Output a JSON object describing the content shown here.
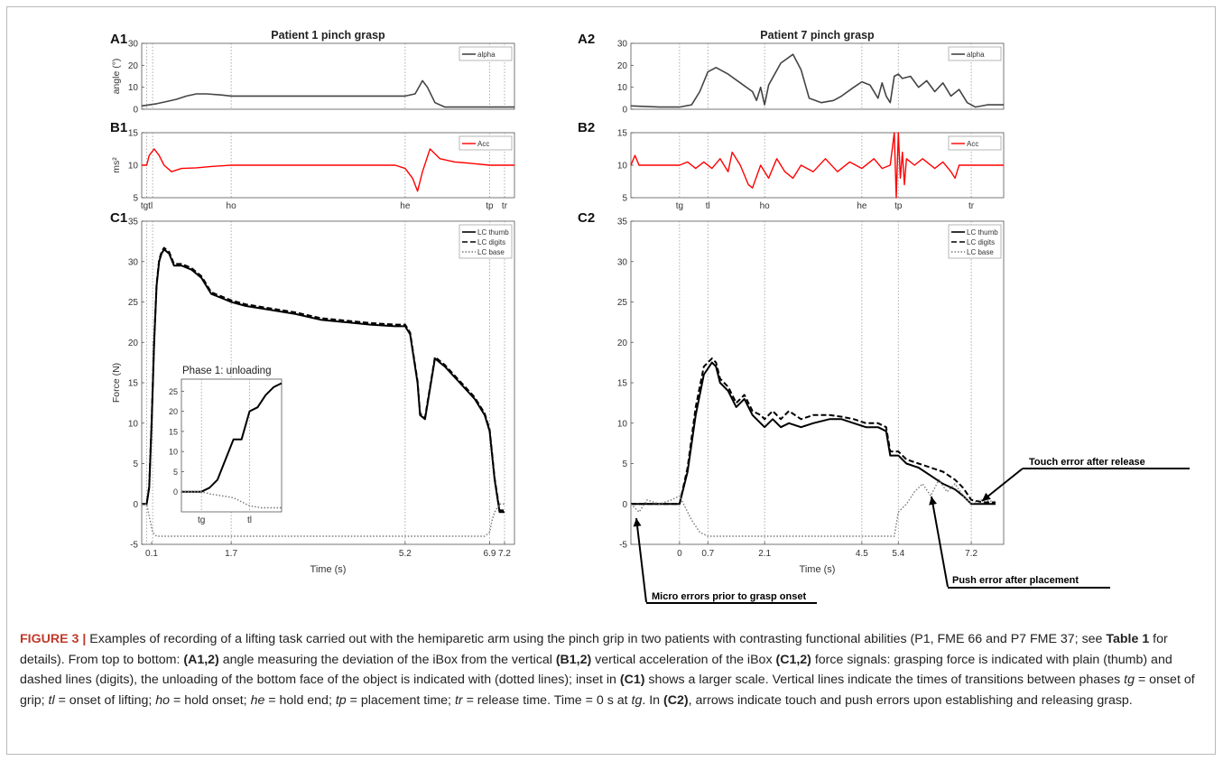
{
  "colors": {
    "angle": "#444444",
    "acc": "#ff0000",
    "thumb": "#000000",
    "base": "#777777",
    "grid": "#999999",
    "caption_label": "#c0392b"
  },
  "chart_data": [
    {
      "panel": "A1",
      "type": "line",
      "title": "Patient 1 pinch grasp",
      "ylabel": "angle (°)",
      "ylim": [
        0,
        30
      ],
      "yticks": [
        0,
        10,
        20,
        30
      ],
      "xlim": [
        -0.1,
        7.4
      ],
      "events": [
        0,
        0.12,
        1.7,
        5.2,
        6.9,
        7.2
      ],
      "legend": [
        "alpha"
      ],
      "legend_pos": "top-right",
      "series": [
        {
          "name": "alpha",
          "x": [
            -0.1,
            0.0,
            0.2,
            0.4,
            0.6,
            0.8,
            1.0,
            1.2,
            1.5,
            1.7,
            2.0,
            3.0,
            4.0,
            5.0,
            5.2,
            5.4,
            5.55,
            5.65,
            5.8,
            6.0,
            6.5,
            7.0,
            7.4
          ],
          "y": [
            1.5,
            1.8,
            2.5,
            3.5,
            4.5,
            6,
            7,
            7,
            6.5,
            6,
            6,
            6,
            6,
            6,
            6,
            7,
            13,
            10,
            3,
            1,
            1,
            1,
            1
          ]
        }
      ]
    },
    {
      "panel": "B1",
      "type": "line",
      "ylabel": "ms²",
      "ylim": [
        5,
        15
      ],
      "yticks": [
        5,
        10,
        15
      ],
      "xlim": [
        -0.1,
        7.4
      ],
      "events": [
        0,
        0.12,
        1.7,
        5.2,
        6.9,
        7.2
      ],
      "event_labels": [
        "tgtl",
        "ho",
        "he",
        "tp",
        "tr"
      ],
      "legend": [
        "Acc"
      ],
      "legend_pos": "top-right",
      "series": [
        {
          "name": "Acc",
          "x": [
            -0.1,
            0.0,
            0.05,
            0.15,
            0.25,
            0.35,
            0.5,
            0.7,
            1.0,
            1.3,
            1.7,
            2.5,
            3.5,
            4.5,
            5.0,
            5.2,
            5.35,
            5.45,
            5.55,
            5.7,
            5.9,
            6.2,
            6.5,
            6.9,
            7.2,
            7.4
          ],
          "y": [
            10,
            10,
            11.5,
            12.5,
            11.5,
            10,
            9,
            9.5,
            9.6,
            9.8,
            10,
            10,
            10,
            10,
            10,
            9.5,
            8,
            6,
            9,
            12.5,
            11,
            10.5,
            10.3,
            10,
            10,
            10
          ]
        }
      ]
    },
    {
      "panel": "C1",
      "type": "line",
      "xlabel": "Time (s)",
      "ylabel": "Force (N)",
      "ylim": [
        -5,
        35
      ],
      "yticks": [
        -5,
        0,
        5,
        10,
        15,
        20,
        25,
        30,
        35
      ],
      "xlim": [
        -0.1,
        7.4
      ],
      "xticks": [
        0.1,
        1.7,
        5.2,
        6.9,
        7.2
      ],
      "xtick_labels": [
        "0.1",
        "1.7",
        "5.2",
        "6.9",
        "7.2"
      ],
      "events": [
        0,
        0.12,
        1.7,
        5.2,
        6.9,
        7.2
      ],
      "legend": [
        "LC thumb",
        "LC digits",
        "LC base"
      ],
      "legend_pos": "top-right",
      "series": [
        {
          "name": "LC thumb",
          "x": [
            -0.1,
            0.0,
            0.05,
            0.1,
            0.15,
            0.2,
            0.25,
            0.3,
            0.35,
            0.45,
            0.55,
            0.7,
            0.9,
            1.1,
            1.3,
            1.5,
            1.7,
            2.0,
            2.5,
            3.0,
            3.5,
            4.0,
            4.5,
            5.0,
            5.2,
            5.3,
            5.45,
            5.5,
            5.6,
            5.8,
            6.0,
            6.3,
            6.6,
            6.8,
            6.9,
            7.0,
            7.1,
            7.2
          ],
          "y": [
            0,
            0,
            2,
            10,
            20,
            27,
            30,
            31,
            31.5,
            31,
            29.5,
            29.5,
            29,
            28,
            26,
            25.5,
            25,
            24.5,
            24,
            23.5,
            22.8,
            22.5,
            22.2,
            22,
            22,
            21,
            15,
            11,
            10.5,
            18,
            17,
            15,
            13,
            11,
            9,
            3,
            -1,
            -1
          ]
        },
        {
          "name": "LC digits",
          "x": [
            -0.1,
            0.0,
            0.05,
            0.1,
            0.15,
            0.2,
            0.25,
            0.3,
            0.35,
            0.45,
            0.55,
            0.7,
            0.9,
            1.1,
            1.3,
            1.5,
            1.7,
            2.0,
            2.5,
            3.0,
            3.5,
            4.0,
            4.5,
            5.0,
            5.2,
            5.3,
            5.45,
            5.5,
            5.6,
            5.8,
            6.0,
            6.3,
            6.6,
            6.8,
            6.9,
            7.0,
            7.1,
            7.2
          ],
          "y": [
            0,
            0,
            2.2,
            10.3,
            20.3,
            27.2,
            30.2,
            31.2,
            31.7,
            31.2,
            29.7,
            29.7,
            29.2,
            28.2,
            26.2,
            25.7,
            25.2,
            24.7,
            24.2,
            23.7,
            23,
            22.7,
            22.4,
            22.2,
            22.2,
            21.2,
            15.2,
            11.2,
            10.7,
            18.2,
            17.2,
            15.2,
            13.2,
            11.2,
            9.2,
            3.2,
            -0.8,
            -0.8
          ]
        },
        {
          "name": "LC base",
          "x": [
            -0.1,
            0.0,
            0.05,
            0.12,
            0.2,
            0.5,
            1.0,
            2.0,
            3.0,
            4.0,
            5.0,
            5.2,
            6.0,
            6.8,
            6.9,
            6.95,
            7.0,
            7.1,
            7.2
          ],
          "y": [
            0,
            0,
            -1.5,
            -3.5,
            -4,
            -4,
            -4,
            -4,
            -4,
            -4,
            -4,
            -4,
            -4,
            -4,
            -3.5,
            -2,
            -1,
            0,
            0
          ]
        }
      ]
    },
    {
      "panel": "C1-inset",
      "type": "line",
      "title": "Phase 1: unloading",
      "xlim": [
        -0.05,
        0.2
      ],
      "ylim": [
        -5,
        28
      ],
      "yticks": [
        0,
        5,
        10,
        15,
        20,
        25
      ],
      "events": [
        0,
        0.12
      ],
      "event_labels": [
        "tg",
        "tl"
      ],
      "series": [
        {
          "name": "LC thumb",
          "x": [
            -0.05,
            -0.02,
            0.0,
            0.02,
            0.04,
            0.06,
            0.08,
            0.1,
            0.12,
            0.14,
            0.16,
            0.18,
            0.2
          ],
          "y": [
            0,
            0,
            0,
            1,
            3,
            8,
            13,
            13,
            20,
            21,
            24,
            26,
            27
          ]
        },
        {
          "name": "LC base",
          "x": [
            -0.05,
            -0.02,
            0.0,
            0.02,
            0.05,
            0.08,
            0.1,
            0.12,
            0.15,
            0.2
          ],
          "y": [
            0,
            0,
            0,
            -0.5,
            -1,
            -1.5,
            -2.5,
            -3.5,
            -4,
            -4
          ]
        }
      ]
    },
    {
      "panel": "A2",
      "type": "line",
      "title": "Patient 7 pinch grasp",
      "ylim": [
        0,
        30
      ],
      "yticks": [
        0,
        10,
        20,
        30
      ],
      "xlim": [
        -1.2,
        8.0
      ],
      "events": [
        0,
        0.7,
        2.1,
        4.5,
        5.4,
        7.2
      ],
      "legend": [
        "alpha"
      ],
      "legend_pos": "top-right",
      "series": [
        {
          "name": "alpha",
          "x": [
            -1.2,
            -0.5,
            0.0,
            0.3,
            0.5,
            0.7,
            0.9,
            1.2,
            1.5,
            1.8,
            1.9,
            2.0,
            2.1,
            2.2,
            2.5,
            2.8,
            3.0,
            3.2,
            3.5,
            3.8,
            4.0,
            4.3,
            4.5,
            4.7,
            4.9,
            5.0,
            5.1,
            5.2,
            5.3,
            5.4,
            5.5,
            5.7,
            5.9,
            6.1,
            6.3,
            6.5,
            6.7,
            6.9,
            7.1,
            7.3,
            7.6,
            8.0
          ],
          "y": [
            1.5,
            1,
            1,
            2,
            8,
            17,
            19,
            16,
            12,
            8,
            4,
            10,
            2,
            11,
            21,
            25,
            18,
            5,
            3,
            4,
            6,
            10,
            12.5,
            11,
            5,
            12,
            6,
            3,
            15,
            16,
            14,
            15,
            10,
            13,
            8,
            12,
            6,
            9,
            3,
            1,
            2,
            2
          ]
        }
      ]
    },
    {
      "panel": "B2",
      "type": "line",
      "ylim": [
        5,
        15
      ],
      "yticks": [
        5,
        10,
        15
      ],
      "xlim": [
        -1.2,
        8.0
      ],
      "events": [
        0,
        0.7,
        2.1,
        4.5,
        5.4,
        7.2
      ],
      "event_labels": [
        "tg",
        "tl",
        "ho",
        "he",
        "tp",
        "tr"
      ],
      "legend": [
        "Acc"
      ],
      "legend_pos": "top-right",
      "series": [
        {
          "name": "Acc",
          "x": [
            -1.2,
            -1.1,
            -1.0,
            0.0,
            0.2,
            0.4,
            0.6,
            0.8,
            1.0,
            1.2,
            1.3,
            1.5,
            1.7,
            1.8,
            2.0,
            2.2,
            2.4,
            2.6,
            2.8,
            3.0,
            3.3,
            3.6,
            3.9,
            4.2,
            4.5,
            4.8,
            5.0,
            5.2,
            5.3,
            5.35,
            5.4,
            5.45,
            5.5,
            5.55,
            5.6,
            5.8,
            6.0,
            6.3,
            6.5,
            6.7,
            6.8,
            6.9,
            7.2,
            7.5,
            8.0
          ],
          "y": [
            10,
            11.5,
            10,
            10,
            10.5,
            9.5,
            10.5,
            9.5,
            11,
            9,
            12,
            10,
            7,
            6.5,
            10,
            8,
            11,
            9,
            8,
            10,
            9,
            11,
            9,
            10.5,
            9.5,
            11,
            9.5,
            10,
            15,
            5,
            15,
            8,
            12,
            7,
            11,
            10,
            11,
            9.5,
            10.5,
            9,
            8,
            10,
            10,
            10,
            10
          ]
        }
      ]
    },
    {
      "panel": "C2",
      "type": "line",
      "xlabel": "Time (s)",
      "ylim": [
        -5,
        35
      ],
      "yticks": [
        -5,
        0,
        5,
        10,
        15,
        20,
        25,
        30,
        35
      ],
      "xlim": [
        -1.2,
        8.0
      ],
      "xticks": [
        0,
        0.7,
        2.1,
        4.5,
        5.4,
        7.2
      ],
      "xtick_labels": [
        "0",
        "0.7",
        "2.1",
        "4.5",
        "5.4",
        "7.2"
      ],
      "events": [
        0,
        0.7,
        2.1,
        4.5,
        5.4,
        7.2
      ],
      "legend": [
        "LC thumb",
        "LC digits",
        "LC base"
      ],
      "legend_pos": "top-right",
      "series": [
        {
          "name": "LC thumb",
          "x": [
            -1.2,
            -0.5,
            0.0,
            0.2,
            0.4,
            0.6,
            0.8,
            0.9,
            1.0,
            1.2,
            1.4,
            1.6,
            1.8,
            2.0,
            2.1,
            2.3,
            2.5,
            2.7,
            3.0,
            3.3,
            3.7,
            4.0,
            4.3,
            4.6,
            4.9,
            5.1,
            5.2,
            5.4,
            5.6,
            5.9,
            6.2,
            6.5,
            6.8,
            7.0,
            7.2,
            7.5,
            7.8
          ],
          "y": [
            0,
            0,
            0,
            4,
            11,
            16,
            17.5,
            17,
            15,
            14,
            12,
            13,
            11,
            10,
            9.5,
            10.5,
            9.5,
            10,
            9.5,
            10,
            10.5,
            10.5,
            10,
            9.5,
            9.5,
            9,
            6,
            6,
            5,
            4.5,
            3.5,
            2.5,
            1.8,
            1,
            0,
            0,
            0
          ]
        },
        {
          "name": "LC digits",
          "x": [
            -1.2,
            -0.5,
            0.0,
            0.2,
            0.4,
            0.6,
            0.8,
            0.9,
            1.0,
            1.2,
            1.4,
            1.6,
            1.8,
            2.0,
            2.1,
            2.3,
            2.5,
            2.7,
            3.0,
            3.3,
            3.7,
            4.0,
            4.3,
            4.6,
            4.9,
            5.1,
            5.2,
            5.4,
            5.6,
            5.9,
            6.2,
            6.5,
            6.8,
            7.0,
            7.2,
            7.5,
            7.8
          ],
          "y": [
            0,
            0,
            0,
            4.5,
            12,
            17,
            18,
            17.5,
            15.5,
            14.5,
            12.5,
            13.5,
            11.5,
            11,
            10.5,
            11.5,
            10.5,
            11.5,
            10.5,
            11,
            11,
            10.8,
            10.5,
            10,
            10,
            9.5,
            6.5,
            6.5,
            5.5,
            5,
            4.5,
            4,
            3,
            2,
            0.5,
            0.2,
            0.2
          ]
        },
        {
          "name": "LC base",
          "x": [
            -1.2,
            -1.0,
            -0.8,
            -0.5,
            -0.2,
            0.0,
            0.1,
            0.3,
            0.5,
            0.7,
            1.0,
            2.0,
            3.0,
            4.0,
            5.0,
            5.3,
            5.4,
            5.6,
            5.8,
            6.0,
            6.2,
            6.4,
            6.6,
            6.8,
            7.0,
            7.2,
            7.4,
            7.8
          ],
          "y": [
            0,
            -1,
            0.5,
            0,
            0.5,
            1,
            0,
            -2,
            -3.5,
            -4,
            -4,
            -4,
            -4,
            -4,
            -4,
            -4,
            -1,
            0,
            1.5,
            2.5,
            1,
            3,
            1.5,
            2.5,
            1,
            0,
            0.5,
            0.3
          ]
        }
      ]
    }
  ],
  "panel_labels": {
    "a1": "A1",
    "b1": "B1",
    "c1": "C1",
    "a2": "A2",
    "b2": "B2",
    "c2": "C2"
  },
  "annotations": {
    "micro": "Micro errors prior to grasp onset",
    "push": "Push error after placement",
    "touch": "Touch error after release"
  },
  "caption": {
    "label": "FIGURE 3 |",
    "s1": " Examples of recording of a lifting task carried out with the hemiparetic arm using the pinch grip in two patients with contrasting functional abilities (P1, FME 66 and P7 FME 37; see ",
    "table_ref": "Table 1",
    "s2": " for details). From top to bottom: ",
    "r1": "(A1,2)",
    "s3": " angle measuring the deviation of the iBox from the vertical ",
    "r2": "(B1,2)",
    "s4": " vertical acceleration of the iBox ",
    "r3": "(C1,2)",
    "s5": " force signals: grasping force is indicated with plain (thumb) and dashed lines (digits), the unloading of the bottom face of the object is indicated with (dotted lines); inset in ",
    "r4": "(C1)",
    "s6": " shows a larger scale. Vertical lines indicate the times of transitions between phases ",
    "tg": "tg",
    "s7": " = onset of grip; ",
    "tl": "tl",
    "s8": " = onset of lifting; ",
    "ho": "ho",
    "s9": " = hold onset; ",
    "he": "he",
    "s10": " = hold end; ",
    "tp": "tp",
    "s11": " = placement time; ",
    "tr": "tr",
    "s12": " = release time. Time = 0 s at ",
    "tg2": "tg",
    "s13": ". In ",
    "r5": "(C2)",
    "s14": ", arrows indicate touch and push errors upon establishing and releasing grasp."
  }
}
